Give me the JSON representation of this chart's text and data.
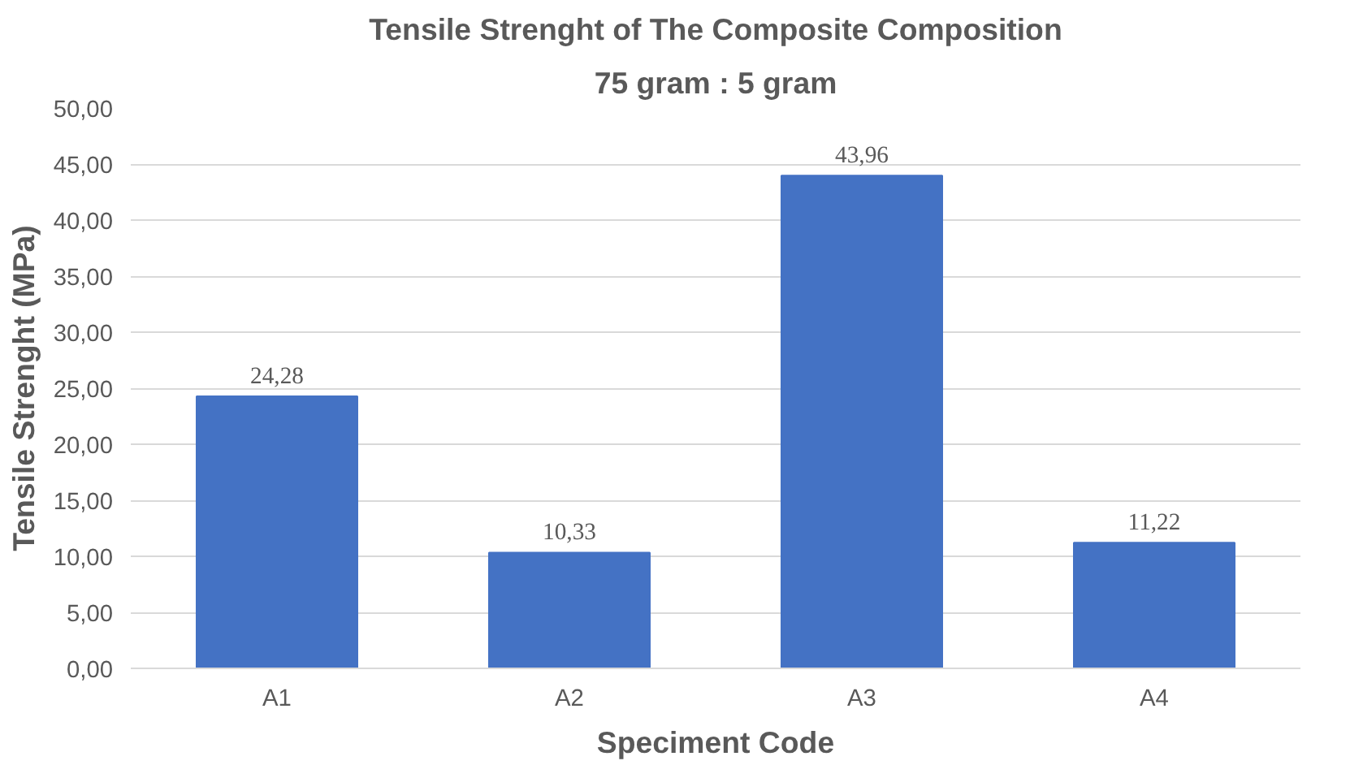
{
  "chart_data": {
    "type": "bar",
    "title": "Tensile Strenght of The Composite Composition",
    "subtitle": "75 gram : 5 gram",
    "xlabel": "Speciment Code",
    "ylabel": "Tensile Strenght (MPa)",
    "categories": [
      "A1",
      "A2",
      "A3",
      "A4"
    ],
    "values": [
      24.28,
      10.33,
      43.96,
      11.22
    ],
    "color": "#4472c4",
    "value_labels": [
      "24,28",
      "10,33",
      "43,96",
      "11,22"
    ],
    "ylim": [
      0,
      50
    ],
    "yticks": [
      {
        "value": 0,
        "label": "0,00"
      },
      {
        "value": 5,
        "label": "5,00"
      },
      {
        "value": 10,
        "label": "10,00"
      },
      {
        "value": 15,
        "label": "15,00"
      },
      {
        "value": 20,
        "label": "20,00"
      },
      {
        "value": 25,
        "label": "25,00"
      },
      {
        "value": 30,
        "label": "30,00"
      },
      {
        "value": 35,
        "label": "35,00"
      },
      {
        "value": 40,
        "label": "40,00"
      },
      {
        "value": 45,
        "label": "45,00"
      },
      {
        "value": 50,
        "label": "50,00"
      }
    ],
    "grid": "y"
  }
}
